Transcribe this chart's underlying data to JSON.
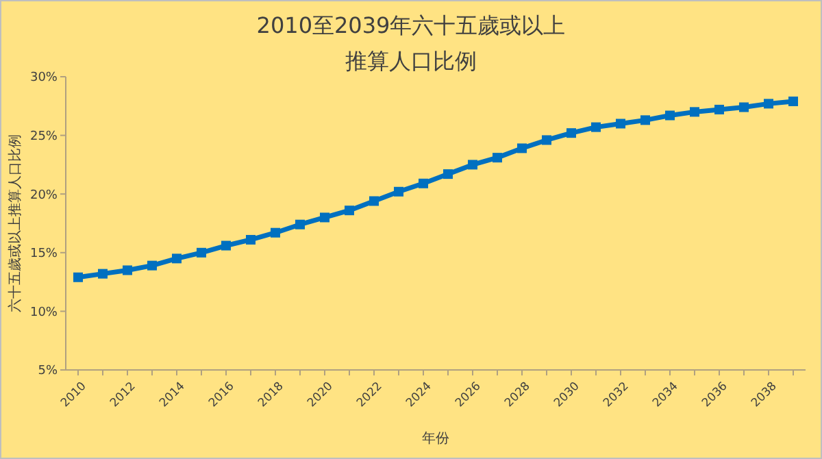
{
  "chart_data": {
    "type": "line",
    "title": "2010至2039年六十五歲或以上",
    "subtitle": "推算人口比例",
    "xlabel": "年份",
    "ylabel": "六十五歲或以上推算人口比例",
    "categories": [
      "2010",
      null,
      "2012",
      null,
      "2014",
      null,
      "2016",
      null,
      "2018",
      null,
      "2020",
      null,
      "2022",
      null,
      "2024",
      null,
      "2026",
      null,
      "2028",
      null,
      "2030",
      null,
      "2032",
      null,
      "2034",
      null,
      "2036",
      null,
      "2038",
      null
    ],
    "series": [
      {
        "color": "#0070c0",
        "values": [
          12.9,
          13.2,
          13.5,
          13.9,
          14.5,
          15.0,
          15.6,
          16.1,
          16.7,
          17.4,
          18.0,
          18.6,
          19.4,
          20.2,
          20.9,
          21.7,
          22.5,
          23.1,
          23.9,
          24.6,
          25.2,
          25.7,
          26.0,
          26.3,
          26.7,
          27.0,
          27.2,
          27.4,
          27.7,
          27.9
        ]
      }
    ],
    "ylim": [
      5,
      30
    ],
    "yticks": [
      {
        "value": 5,
        "label": "5%"
      },
      {
        "value": 10,
        "label": "10%"
      },
      {
        "value": 15,
        "label": "15%"
      },
      {
        "value": 20,
        "label": "20%"
      },
      {
        "value": 25,
        "label": "25%"
      },
      {
        "value": 30,
        "label": "30%"
      }
    ],
    "grid": false,
    "marker": "square",
    "line_style": "solid"
  }
}
